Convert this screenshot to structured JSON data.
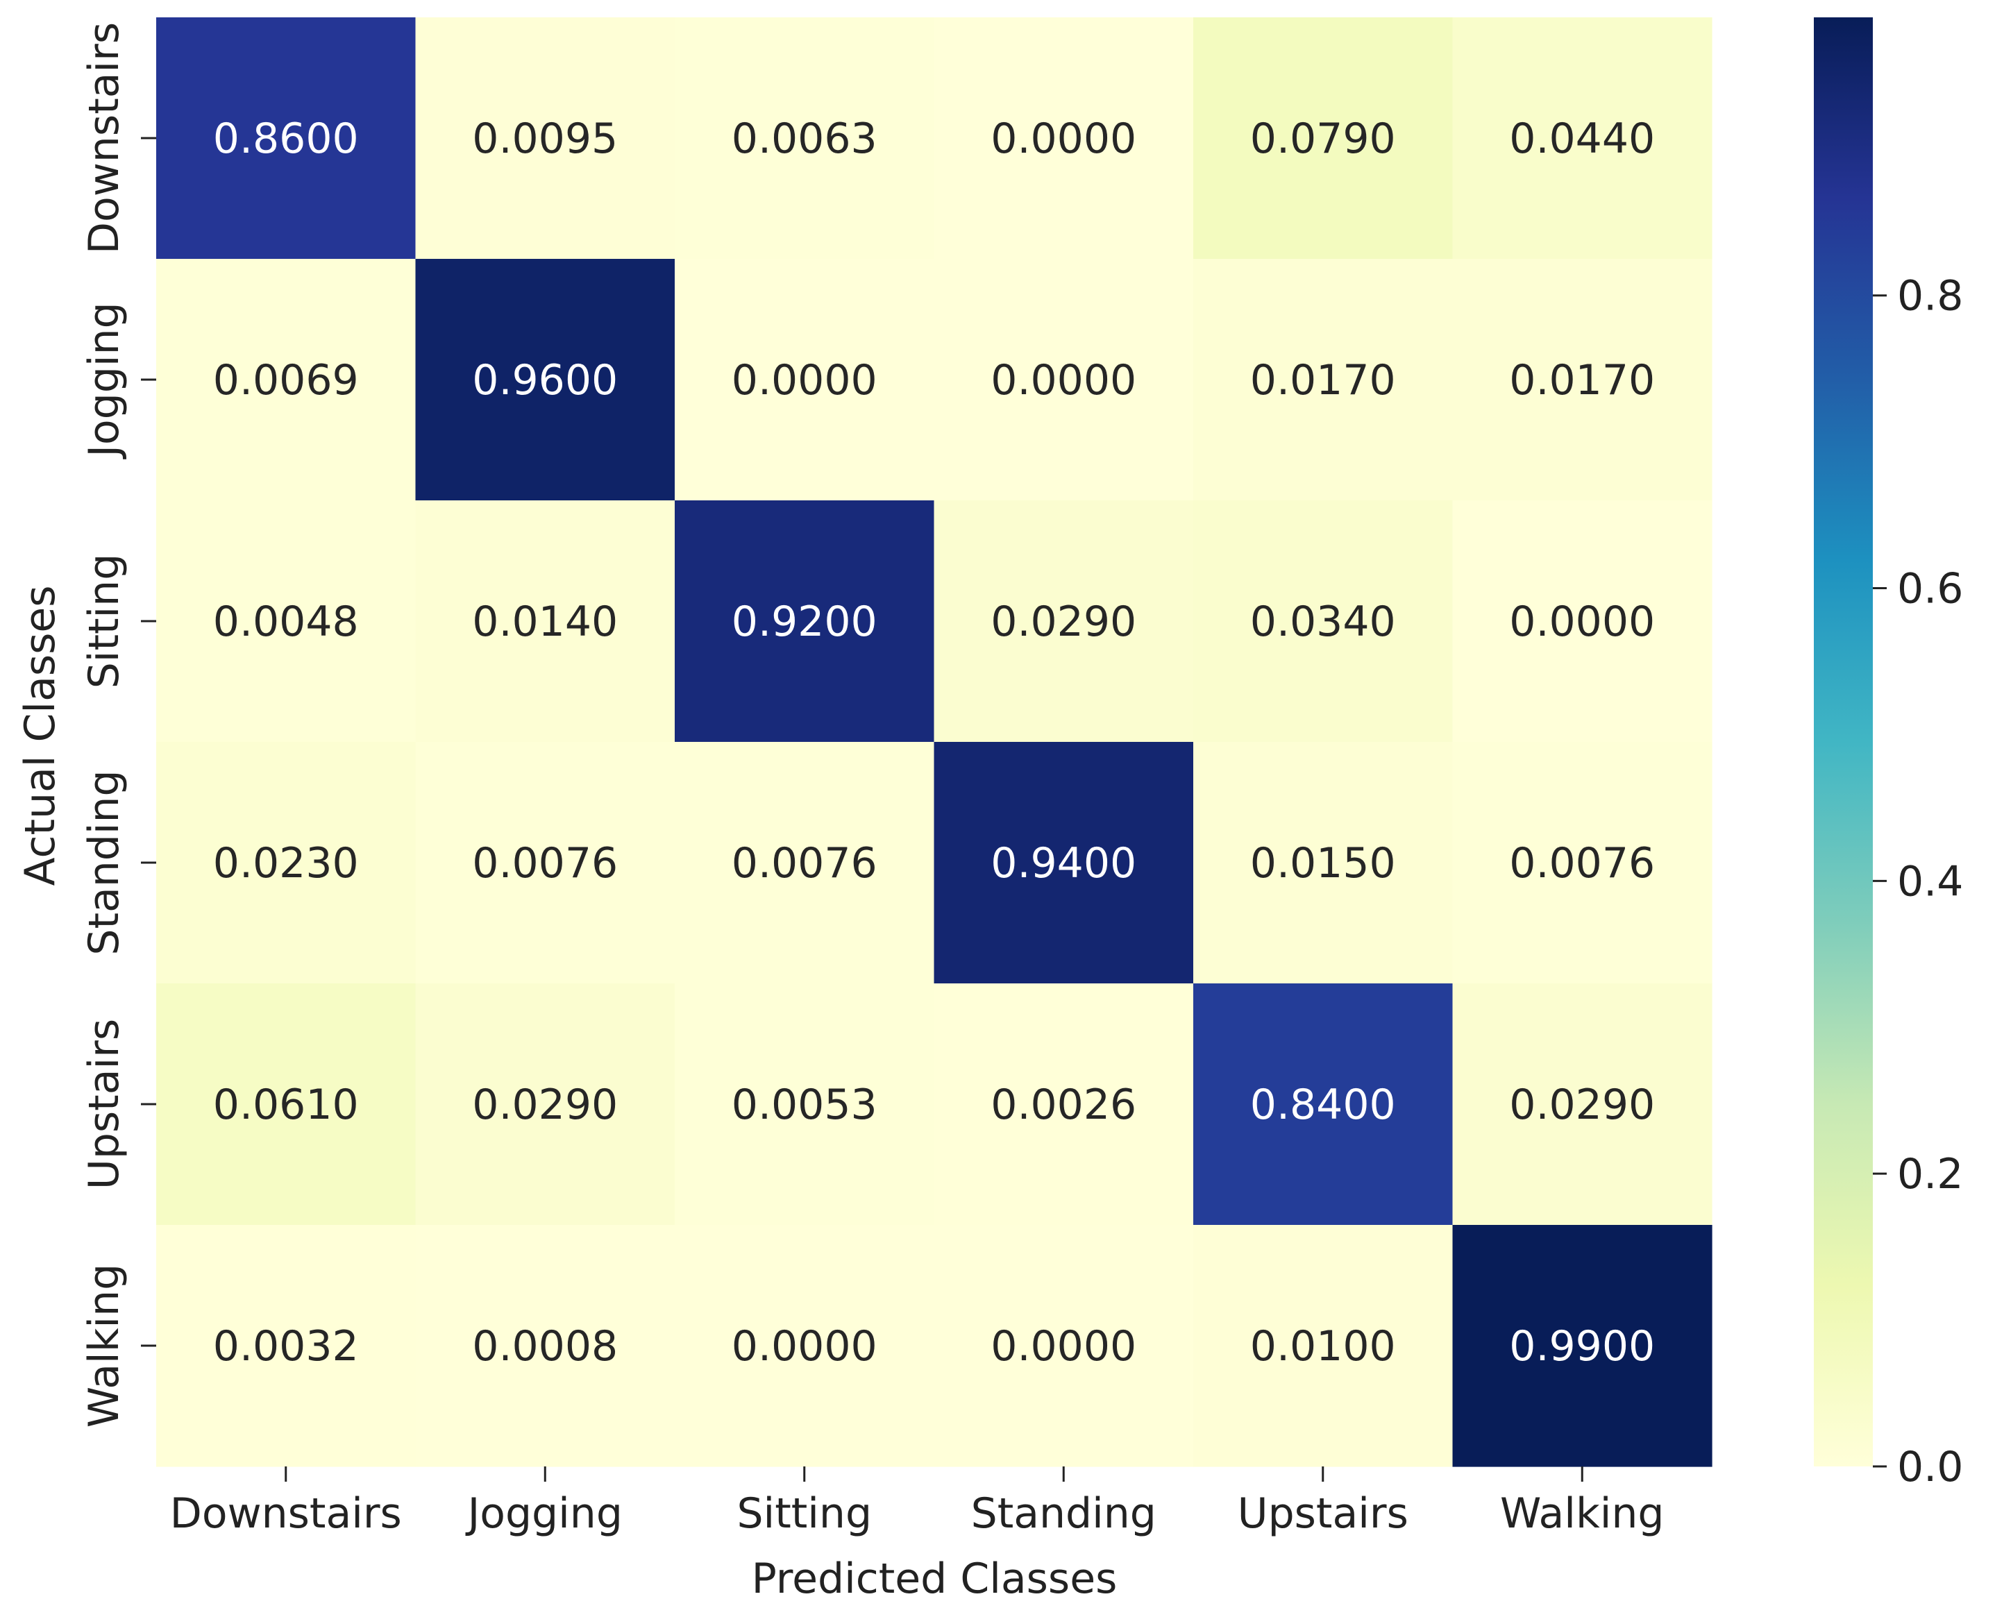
{
  "chart_data": {
    "type": "heatmap",
    "title": "",
    "xlabel": "Predicted Classes",
    "ylabel": "Actual Classes",
    "x_categories": [
      "Downstairs",
      "Jogging",
      "Sitting",
      "Standing",
      "Upstairs",
      "Walking"
    ],
    "y_categories": [
      "Downstairs",
      "Jogging",
      "Sitting",
      "Standing",
      "Upstairs",
      "Walking"
    ],
    "values": [
      [
        0.86,
        0.0095,
        0.0063,
        0.0,
        0.079,
        0.044
      ],
      [
        0.0069,
        0.96,
        0.0,
        0.0,
        0.017,
        0.017
      ],
      [
        0.0048,
        0.014,
        0.92,
        0.029,
        0.034,
        0.0
      ],
      [
        0.023,
        0.0076,
        0.0076,
        0.94,
        0.015,
        0.0076
      ],
      [
        0.061,
        0.029,
        0.0053,
        0.0026,
        0.84,
        0.029
      ],
      [
        0.0032,
        0.0008,
        0.0,
        0.0,
        0.01,
        0.99
      ]
    ],
    "value_labels": [
      [
        "0.8600",
        "0.0095",
        "0.0063",
        "0.0000",
        "0.0790",
        "0.0440"
      ],
      [
        "0.0069",
        "0.9600",
        "0.0000",
        "0.0000",
        "0.0170",
        "0.0170"
      ],
      [
        "0.0048",
        "0.0140",
        "0.9200",
        "0.0290",
        "0.0340",
        "0.0000"
      ],
      [
        "0.0230",
        "0.0076",
        "0.0076",
        "0.9400",
        "0.0150",
        "0.0076"
      ],
      [
        "0.0610",
        "0.0290",
        "0.0053",
        "0.0026",
        "0.8400",
        "0.0290"
      ],
      [
        "0.0032",
        "0.0008",
        "0.0000",
        "0.0000",
        "0.0100",
        "0.9900"
      ]
    ],
    "colormap": "YlGnBu",
    "color_range": [
      0,
      0.99
    ],
    "colorbar": {
      "ticks": [
        0.0,
        0.2,
        0.4,
        0.6,
        0.8
      ],
      "tick_labels": [
        "0.0",
        "0.2",
        "0.4",
        "0.6",
        "0.8"
      ],
      "placement": "right"
    },
    "grid": false
  }
}
